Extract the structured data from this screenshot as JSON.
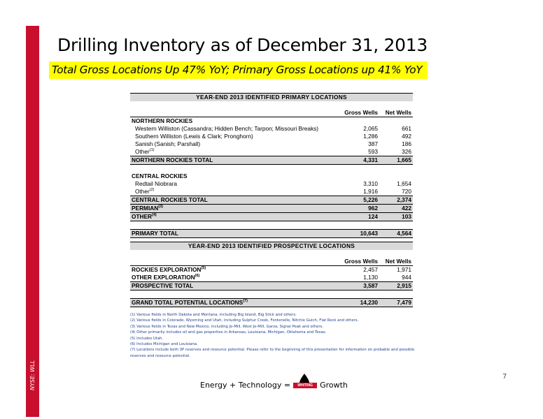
{
  "ticker": "NYSE: WLL",
  "title": "Drilling Inventory as of December 31, 2013",
  "subtitle": "Total Gross Locations Up 47% YoY; Primary Gross Locations up 41% YoY",
  "primary": {
    "header": "YEAR-END 2013 IDENTIFIED PRIMARY LOCATIONS",
    "col_gross": "Gross Wells",
    "col_net": "Net Wells",
    "northern": {
      "label": "NORTHERN ROCKIES",
      "rows": [
        {
          "name": "Western Williston (Cassandra; Hidden Bench; Tarpon; Missouri Breaks)",
          "gross": "2,065",
          "net": "661"
        },
        {
          "name": "Southern Williston (Lewis & Clark; Pronghorn)",
          "gross": "1,286",
          "net": "492"
        },
        {
          "name": "Sanish (Sanish; Parshall)",
          "gross": "387",
          "net": "186"
        },
        {
          "name": "Other",
          "sup": "(1)",
          "gross": "593",
          "net": "326"
        }
      ],
      "total_label": "NORTHERN ROCKIES TOTAL",
      "total_gross": "4,331",
      "total_net": "1,665"
    },
    "central": {
      "label": "CENTRAL ROCKIES",
      "rows": [
        {
          "name": "Redtail Niobrara",
          "gross": "3,310",
          "net": "1,654"
        },
        {
          "name": "Other",
          "sup": "(2)",
          "gross": "1,916",
          "net": "720"
        }
      ],
      "total_label": "CENTRAL ROCKIES TOTAL",
      "total_gross": "5,226",
      "total_net": "2,374"
    },
    "permian": {
      "label": "PERMIAN",
      "sup": "(3)",
      "gross": "962",
      "net": "422"
    },
    "other": {
      "label": "OTHER",
      "sup": "(4)",
      "gross": "124",
      "net": "103"
    },
    "total": {
      "label": "PRIMARY TOTAL",
      "gross": "10,643",
      "net": "4,564"
    }
  },
  "prospective": {
    "header": "YEAR-END 2013 IDENTIFIED PROSPECTIVE LOCATIONS",
    "col_gross": "Gross Wells",
    "col_net": "Net Wells",
    "rows": [
      {
        "name": "ROCKIES EXPLORATION",
        "sup": "(5)",
        "gross": "2,457",
        "net": "1,971"
      },
      {
        "name": "OTHER EXPLORATION",
        "sup": "(6)",
        "gross": "1,130",
        "net": "944"
      }
    ],
    "total": {
      "label": "PROSPECTIVE TOTAL",
      "gross": "3,587",
      "net": "2,915"
    },
    "grand": {
      "label": "GRAND TOTAL POTENTIAL LOCATIONS",
      "sup": "(7)",
      "gross": "14,230",
      "net": "7,479"
    }
  },
  "notes": [
    "(1) Various fields in North Dakota and Montana, including Big Island, Big Stick and others.",
    "(2) Various fields in Colorado, Wyoming and Utah, including Sulphur Creek, Fontenelle, Nitchie Gulch, Flat Rock and others.",
    "(3) Various fields in Texas and New Mexico, including Jo-Mill, West Jo-Mill, Garza, Signal Peak and others.",
    "(4) Other primarily includes oil and gas properties in Arkansas, Louisiana, Michigan, Oklahoma and Texas.",
    "(5) Includes Utah.",
    "(6) Includes Michigan and Louisiana.",
    "(7) Locations include both 3P reserves and resource potential.  Please refer to the beginning of this presentation for information on probable and possible reserves and resource potential."
  ],
  "footer": {
    "left": "Energy + Technology =",
    "logo_text": "WHITING",
    "right": "Growth"
  },
  "page_number": "7",
  "colors": {
    "brand_red": "#c8102e",
    "highlight": "#ffff00",
    "table_shade": "#d9d9d9",
    "notes_blue": "#1f3c88"
  }
}
